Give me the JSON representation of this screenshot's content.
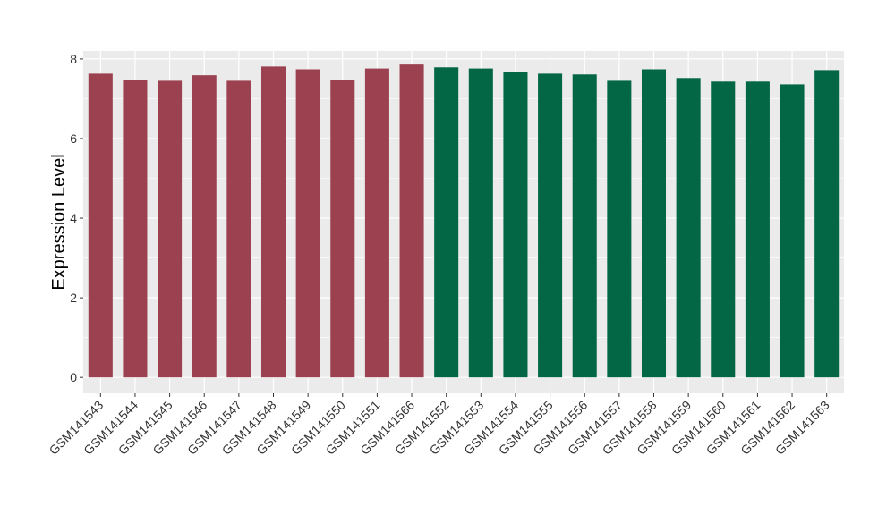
{
  "chart_data": {
    "type": "bar",
    "title": "",
    "xlabel": "",
    "ylabel": "Expression Level",
    "ylim": [
      -0.4,
      8.2
    ],
    "yticks": [
      0,
      2,
      4,
      6,
      8
    ],
    "grid": true,
    "categories": [
      "GSM141543",
      "GSM141544",
      "GSM141545",
      "GSM141546",
      "GSM141547",
      "GSM141548",
      "GSM141549",
      "GSM141550",
      "GSM141551",
      "GSM141566",
      "GSM141552",
      "GSM141553",
      "GSM141554",
      "GSM141555",
      "GSM141556",
      "GSM141557",
      "GSM141558",
      "GSM141559",
      "GSM141560",
      "GSM141561",
      "GSM141562",
      "GSM141563"
    ],
    "values": [
      7.63,
      7.48,
      7.45,
      7.59,
      7.45,
      7.81,
      7.74,
      7.48,
      7.76,
      7.86,
      7.79,
      7.76,
      7.68,
      7.63,
      7.61,
      7.45,
      7.74,
      7.52,
      7.43,
      7.43,
      7.36,
      7.72
    ],
    "groups": [
      0,
      0,
      0,
      0,
      0,
      0,
      0,
      0,
      0,
      0,
      1,
      1,
      1,
      1,
      1,
      1,
      1,
      1,
      1,
      1,
      1,
      1
    ],
    "colors": [
      "#9b4150",
      "#036745"
    ]
  }
}
